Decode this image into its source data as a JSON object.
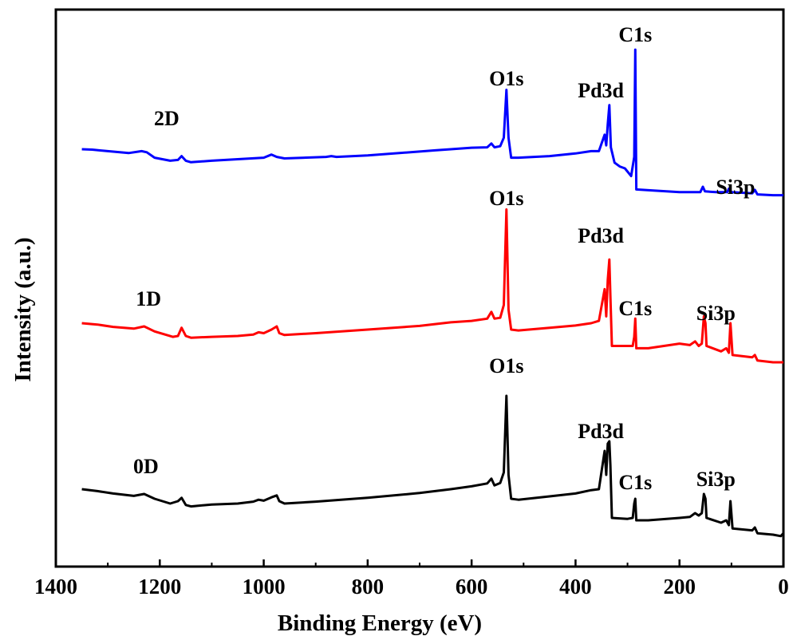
{
  "chart_data": {
    "type": "line",
    "xlabel": "Binding Energy (eV)",
    "ylabel": "Intensity (a.u.)",
    "xlim": [
      1400,
      0
    ],
    "x_reversed": true,
    "x_ticks": [
      1400,
      1200,
      1000,
      800,
      600,
      400,
      200,
      0
    ],
    "y_ticks_shown": false,
    "grid": false,
    "series": [
      {
        "name": "2D",
        "color": "#0000ff",
        "points": [
          [
            1350,
            0.0
          ],
          [
            1330,
            -0.01
          ],
          [
            1300,
            -0.05
          ],
          [
            1260,
            -0.1
          ],
          [
            1235,
            -0.05
          ],
          [
            1225,
            -0.08
          ],
          [
            1210,
            -0.22
          ],
          [
            1180,
            -0.3
          ],
          [
            1165,
            -0.28
          ],
          [
            1158,
            -0.18
          ],
          [
            1150,
            -0.3
          ],
          [
            1140,
            -0.34
          ],
          [
            1100,
            -0.3
          ],
          [
            1050,
            -0.26
          ],
          [
            1000,
            -0.22
          ],
          [
            985,
            -0.14
          ],
          [
            975,
            -0.2
          ],
          [
            960,
            -0.24
          ],
          [
            880,
            -0.2
          ],
          [
            870,
            -0.18
          ],
          [
            860,
            -0.2
          ],
          [
            800,
            -0.16
          ],
          [
            700,
            -0.06
          ],
          [
            670,
            -0.03
          ],
          [
            640,
            0.0
          ],
          [
            600,
            0.04
          ],
          [
            570,
            0.05
          ],
          [
            562,
            0.15
          ],
          [
            556,
            0.05
          ],
          [
            545,
            0.08
          ],
          [
            538,
            0.3
          ],
          [
            533,
            1.55
          ],
          [
            529,
            0.3
          ],
          [
            524,
            -0.22
          ],
          [
            510,
            -0.22
          ],
          [
            450,
            -0.18
          ],
          [
            400,
            -0.11
          ],
          [
            370,
            -0.05
          ],
          [
            355,
            -0.05
          ],
          [
            344,
            0.38
          ],
          [
            341,
            0.1
          ],
          [
            338,
            0.65
          ],
          [
            335,
            1.15
          ],
          [
            332,
            0.05
          ],
          [
            325,
            -0.35
          ],
          [
            315,
            -0.45
          ],
          [
            305,
            -0.5
          ],
          [
            293,
            -0.7
          ],
          [
            287,
            -0.2
          ],
          [
            285,
            2.6
          ],
          [
            283,
            -1.05
          ],
          [
            250,
            -1.08
          ],
          [
            200,
            -1.12
          ],
          [
            160,
            -1.12
          ],
          [
            155,
            -0.98
          ],
          [
            151,
            -1.1
          ],
          [
            130,
            -1.12
          ],
          [
            108,
            -1.12
          ],
          [
            105,
            -1.03
          ],
          [
            100,
            -1.12
          ],
          [
            60,
            -1.15
          ],
          [
            55,
            -1.06
          ],
          [
            50,
            -1.18
          ],
          [
            20,
            -1.2
          ],
          [
            0,
            -1.2
          ]
        ]
      },
      {
        "name": "1D",
        "color": "#ff0000",
        "points": [
          [
            1350,
            0.0
          ],
          [
            1320,
            -0.03
          ],
          [
            1290,
            -0.08
          ],
          [
            1250,
            -0.12
          ],
          [
            1230,
            -0.07
          ],
          [
            1210,
            -0.18
          ],
          [
            1175,
            -0.3
          ],
          [
            1165,
            -0.28
          ],
          [
            1158,
            -0.1
          ],
          [
            1150,
            -0.28
          ],
          [
            1140,
            -0.32
          ],
          [
            1100,
            -0.3
          ],
          [
            1050,
            -0.28
          ],
          [
            1020,
            -0.25
          ],
          [
            1010,
            -0.2
          ],
          [
            1000,
            -0.22
          ],
          [
            985,
            -0.14
          ],
          [
            975,
            -0.07
          ],
          [
            970,
            -0.22
          ],
          [
            960,
            -0.26
          ],
          [
            900,
            -0.22
          ],
          [
            800,
            -0.14
          ],
          [
            700,
            -0.06
          ],
          [
            670,
            -0.02
          ],
          [
            640,
            0.02
          ],
          [
            600,
            0.05
          ],
          [
            570,
            0.1
          ],
          [
            562,
            0.25
          ],
          [
            556,
            0.1
          ],
          [
            545,
            0.12
          ],
          [
            538,
            0.4
          ],
          [
            533,
            2.5
          ],
          [
            529,
            0.3
          ],
          [
            524,
            -0.14
          ],
          [
            510,
            -0.16
          ],
          [
            450,
            -0.1
          ],
          [
            400,
            -0.05
          ],
          [
            370,
            0.0
          ],
          [
            355,
            0.05
          ],
          [
            344,
            0.75
          ],
          [
            341,
            0.15
          ],
          [
            338,
            0.95
          ],
          [
            335,
            1.4
          ],
          [
            333,
            0.6
          ],
          [
            330,
            -0.5
          ],
          [
            300,
            -0.5
          ],
          [
            290,
            -0.5
          ],
          [
            287,
            -0.3
          ],
          [
            285,
            0.1
          ],
          [
            283,
            -0.55
          ],
          [
            260,
            -0.55
          ],
          [
            200,
            -0.45
          ],
          [
            180,
            -0.48
          ],
          [
            170,
            -0.4
          ],
          [
            163,
            -0.5
          ],
          [
            157,
            -0.45
          ],
          [
            153,
            0.15
          ],
          [
            150,
            0.0
          ],
          [
            148,
            -0.5
          ],
          [
            120,
            -0.62
          ],
          [
            110,
            -0.55
          ],
          [
            105,
            -0.65
          ],
          [
            102,
            0.0
          ],
          [
            98,
            -0.7
          ],
          [
            60,
            -0.75
          ],
          [
            55,
            -0.7
          ],
          [
            50,
            -0.82
          ],
          [
            20,
            -0.86
          ],
          [
            0,
            -0.86
          ]
        ]
      },
      {
        "name": "0D",
        "color": "#000000",
        "points": [
          [
            1350,
            0.0
          ],
          [
            1320,
            -0.04
          ],
          [
            1290,
            -0.09
          ],
          [
            1250,
            -0.14
          ],
          [
            1230,
            -0.1
          ],
          [
            1210,
            -0.2
          ],
          [
            1180,
            -0.3
          ],
          [
            1165,
            -0.25
          ],
          [
            1158,
            -0.18
          ],
          [
            1150,
            -0.33
          ],
          [
            1140,
            -0.36
          ],
          [
            1100,
            -0.32
          ],
          [
            1050,
            -0.3
          ],
          [
            1020,
            -0.26
          ],
          [
            1010,
            -0.22
          ],
          [
            1000,
            -0.24
          ],
          [
            985,
            -0.17
          ],
          [
            975,
            -0.13
          ],
          [
            970,
            -0.25
          ],
          [
            960,
            -0.3
          ],
          [
            900,
            -0.26
          ],
          [
            800,
            -0.18
          ],
          [
            700,
            -0.08
          ],
          [
            670,
            -0.04
          ],
          [
            640,
            0.0
          ],
          [
            600,
            0.06
          ],
          [
            570,
            0.12
          ],
          [
            562,
            0.22
          ],
          [
            556,
            0.08
          ],
          [
            545,
            0.13
          ],
          [
            538,
            0.35
          ],
          [
            533,
            1.95
          ],
          [
            529,
            0.3
          ],
          [
            524,
            -0.2
          ],
          [
            510,
            -0.22
          ],
          [
            450,
            -0.15
          ],
          [
            400,
            -0.09
          ],
          [
            370,
            -0.02
          ],
          [
            355,
            0.0
          ],
          [
            344,
            0.8
          ],
          [
            341,
            0.3
          ],
          [
            338,
            0.95
          ],
          [
            335,
            1.0
          ],
          [
            333,
            0.5
          ],
          [
            330,
            -0.6
          ],
          [
            300,
            -0.62
          ],
          [
            290,
            -0.6
          ],
          [
            287,
            -0.3
          ],
          [
            285,
            -0.2
          ],
          [
            283,
            -0.65
          ],
          [
            260,
            -0.65
          ],
          [
            200,
            -0.6
          ],
          [
            180,
            -0.58
          ],
          [
            170,
            -0.5
          ],
          [
            163,
            -0.55
          ],
          [
            157,
            -0.5
          ],
          [
            153,
            -0.1
          ],
          [
            150,
            -0.2
          ],
          [
            148,
            -0.6
          ],
          [
            120,
            -0.7
          ],
          [
            110,
            -0.65
          ],
          [
            105,
            -0.75
          ],
          [
            102,
            -0.25
          ],
          [
            98,
            -0.82
          ],
          [
            60,
            -0.86
          ],
          [
            55,
            -0.8
          ],
          [
            50,
            -0.92
          ],
          [
            20,
            -0.95
          ],
          [
            5,
            -0.98
          ],
          [
            0,
            -0.92
          ]
        ]
      }
    ],
    "annotations": [
      {
        "series": "2D",
        "text": "O1s",
        "x": 533
      },
      {
        "series": "2D",
        "text": "Pd3d",
        "x": 336
      },
      {
        "series": "2D",
        "text": "C1s",
        "x": 285
      },
      {
        "series": "2D",
        "text": "Si3p",
        "x": 100
      },
      {
        "series": "1D",
        "text": "O1s",
        "x": 533
      },
      {
        "series": "1D",
        "text": "Pd3d",
        "x": 336
      },
      {
        "series": "1D",
        "text": "C1s",
        "x": 285
      },
      {
        "series": "1D",
        "text": "Si3p",
        "x": 130
      },
      {
        "series": "0D",
        "text": "O1s",
        "x": 533
      },
      {
        "series": "0D",
        "text": "Pd3d",
        "x": 336
      },
      {
        "series": "0D",
        "text": "C1s",
        "x": 285
      },
      {
        "series": "0D",
        "text": "Si3p",
        "x": 130
      }
    ]
  }
}
